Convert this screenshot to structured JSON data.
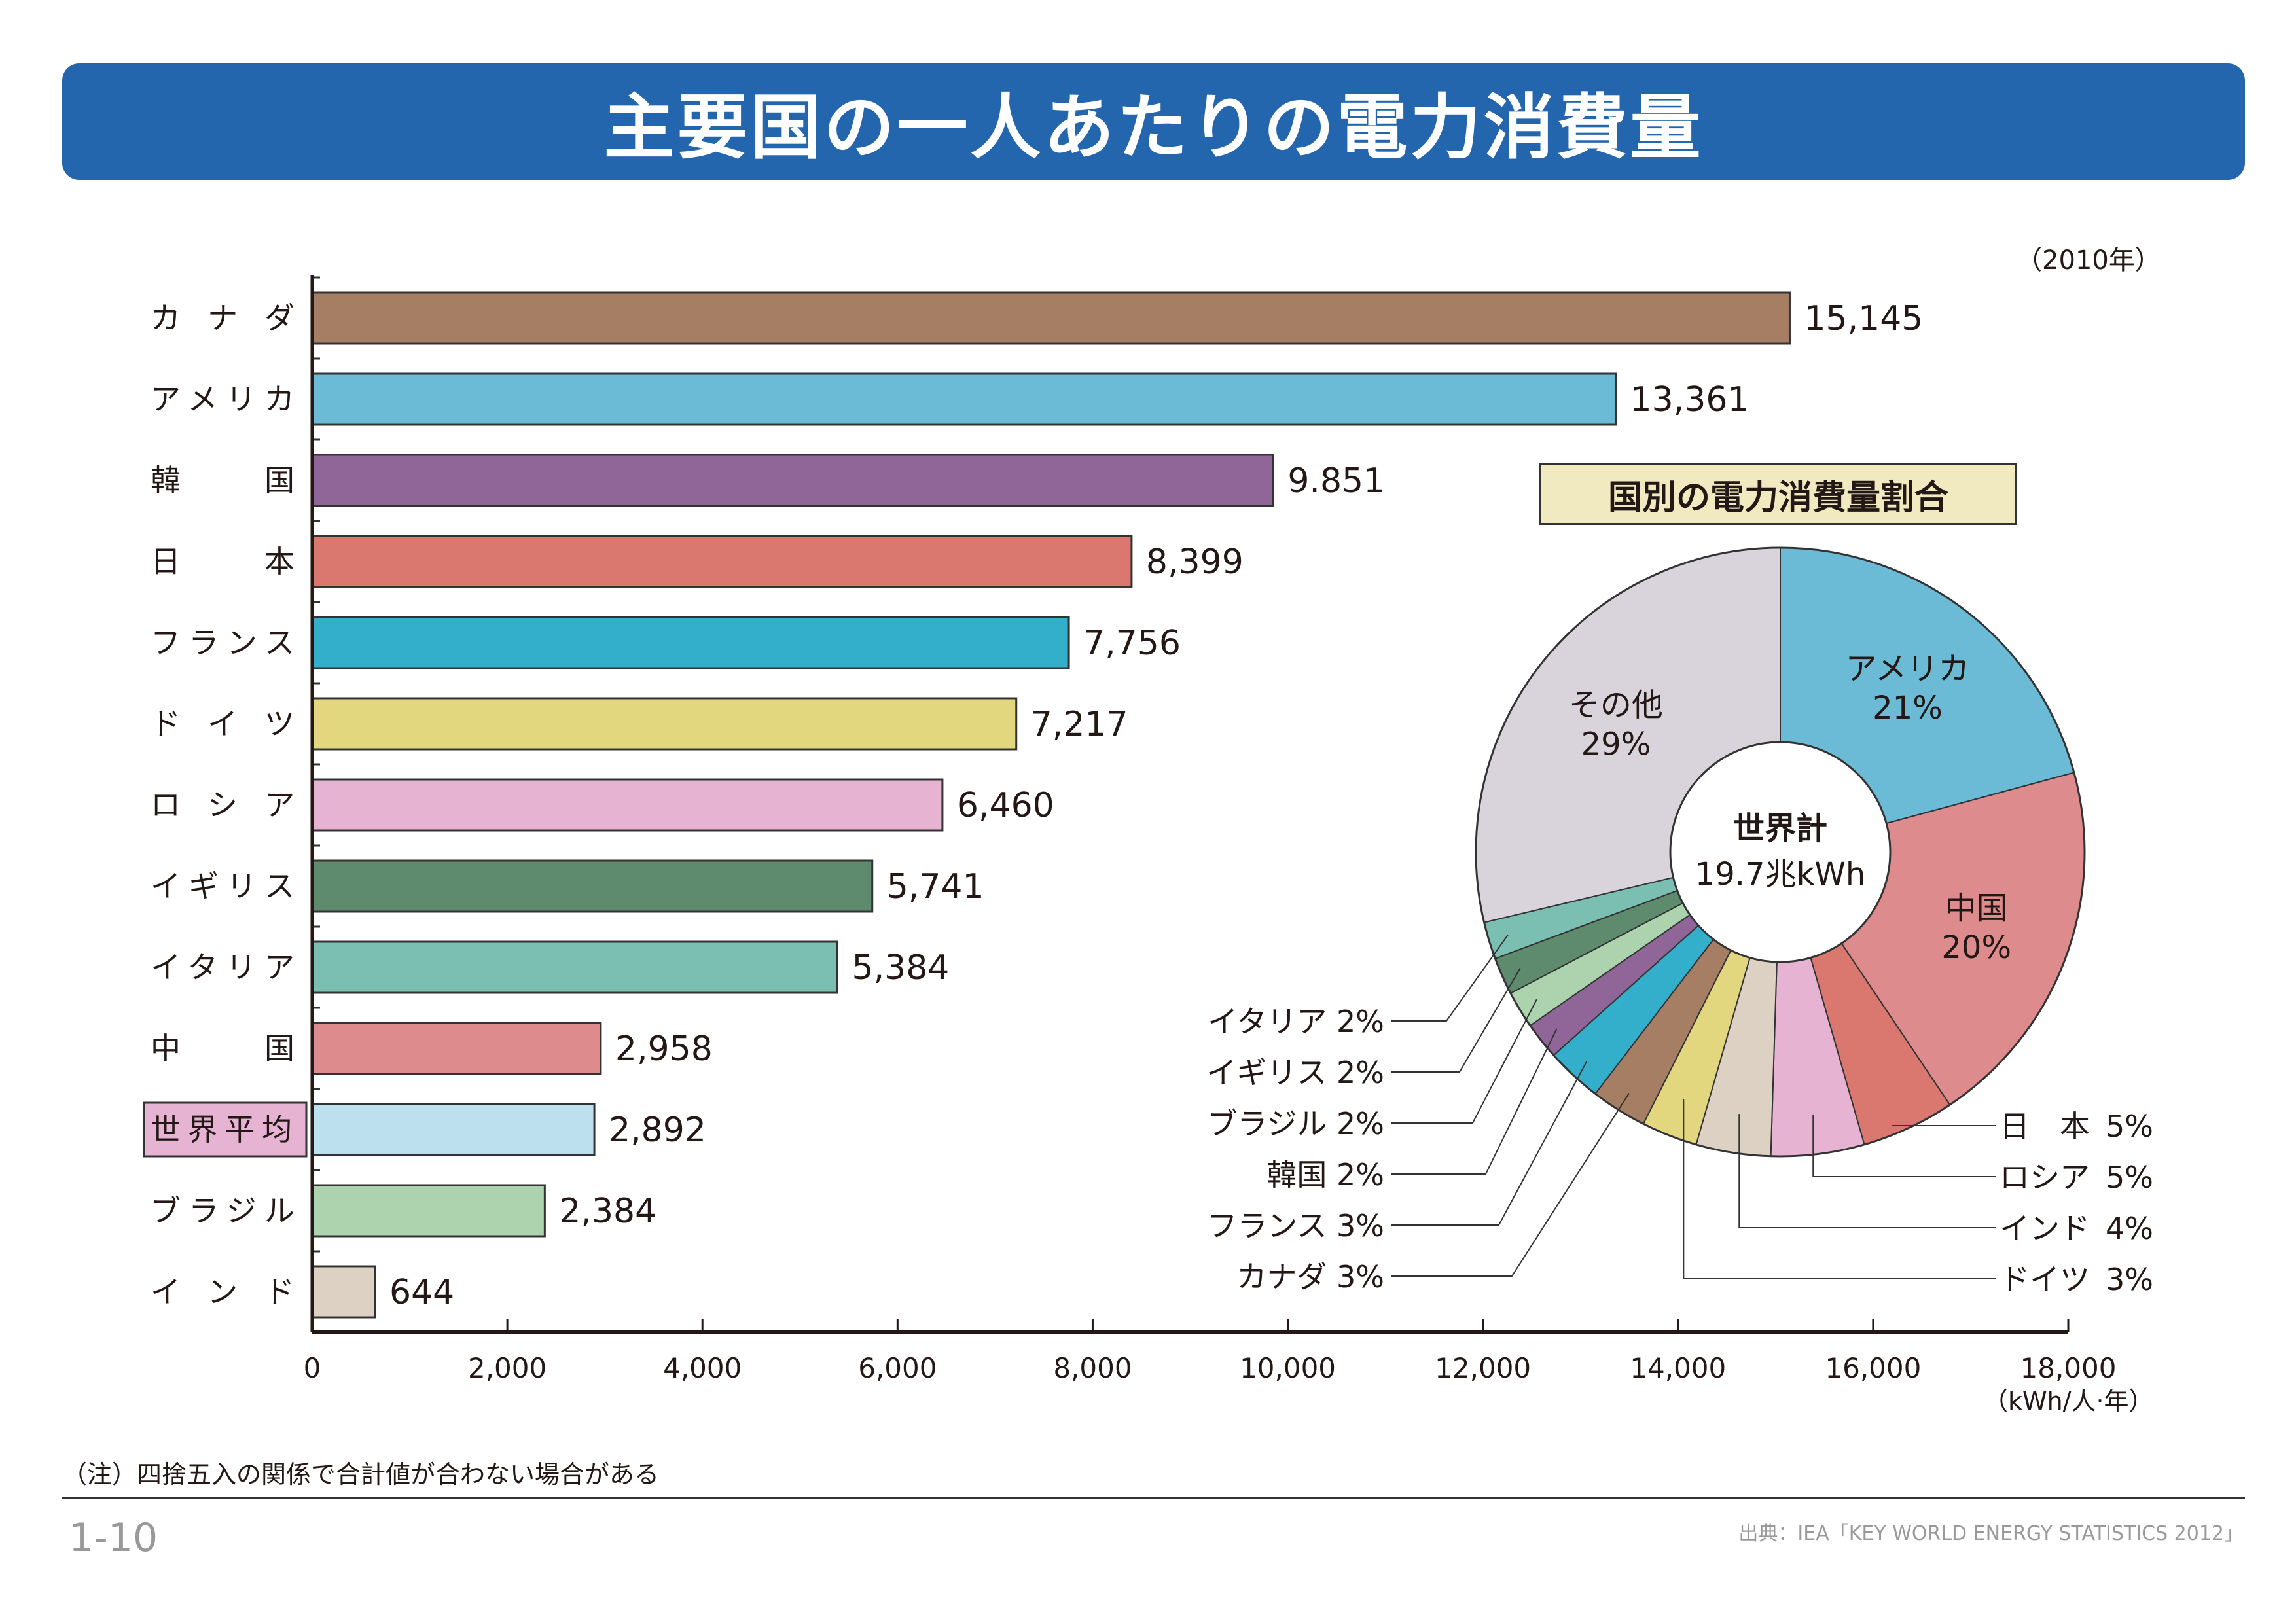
{
  "title": "主要国の一人あたりの電力消費量",
  "year_note": "（2010年）",
  "footnote": "（注）四捨五入の関係で合計値が合わない場合がある",
  "page_number": "1-10",
  "source": "出典：IEA「KEY WORLD ENERGY STATISTICS 2012」",
  "chart_data": [
    {
      "type": "bar",
      "orientation": "horizontal",
      "title": "主要国の一人あたりの電力消費量",
      "xlabel": "（kWh/人·年）",
      "xlim": [
        0,
        18000
      ],
      "xticks": [
        "0",
        "2,000",
        "4,000",
        "6,000",
        "8,000",
        "10,000",
        "12,000",
        "14,000",
        "16,000",
        "18,000"
      ],
      "grid": false,
      "categories": [
        "カナダ",
        "アメリカ",
        "韓国",
        "日本",
        "フランス",
        "ドイツ",
        "ロシア",
        "イギリス",
        "イタリア",
        "中国",
        "世界平均",
        "ブラジル",
        "インド"
      ],
      "category_labels": [
        "カ ナ ダ",
        "アメリカ",
        "韓　　国",
        "日　　本",
        "フランス",
        "ド イ ツ",
        "ロ シ ア",
        "イギリス",
        "イタリア",
        "中　　国",
        "世界平均",
        "ブラジル",
        "イ ン ド"
      ],
      "values": [
        15145,
        13361,
        9851,
        8399,
        7756,
        7217,
        6460,
        5741,
        5384,
        2958,
        2892,
        2384,
        644
      ],
      "value_labels": [
        "15,145",
        "13,361",
        "9.851",
        "8,399",
        "7,756",
        "7,217",
        "6,460",
        "5,741",
        "5,384",
        "2,958",
        "2,892",
        "2,384",
        "644"
      ],
      "colors": [
        "#a67e64",
        "#6bbbd6",
        "#906699",
        "#da7870",
        "#33afcc",
        "#e2d77e",
        "#e6b4d2",
        "#5e8b6e",
        "#7abfb2",
        "#de8b8e",
        "#bde0ee",
        "#acd2ae",
        "#ddd1c3"
      ],
      "highlight_label": "世界平均",
      "highlight_color": "#e6b4d2"
    },
    {
      "type": "pie",
      "style": "donut",
      "title": "国別の電力消費量割合",
      "center_label": "世界計",
      "center_value": "19.7兆kWh",
      "slices": [
        {
          "name": "アメリカ",
          "label": "アメリカ",
          "pct": 21,
          "pct_label": "21%",
          "color": "#6bbbd6",
          "label_inside": true
        },
        {
          "name": "中国",
          "label": "中国",
          "pct": 20,
          "pct_label": "20%",
          "color": "#de8b8e",
          "label_inside": true
        },
        {
          "name": "日本",
          "label": "日　本",
          "pct": 5,
          "pct_label": "5%",
          "color": "#da7870"
        },
        {
          "name": "ロシア",
          "label": "ロシア",
          "pct": 5,
          "pct_label": "5%",
          "color": "#e6b4d2"
        },
        {
          "name": "インド",
          "label": "インド",
          "pct": 4,
          "pct_label": "4%",
          "color": "#ddd1c3"
        },
        {
          "name": "ドイツ",
          "label": "ドイツ",
          "pct": 3,
          "pct_label": "3%",
          "color": "#e2d77e"
        },
        {
          "name": "カナダ",
          "label": "カナダ",
          "pct": 3,
          "pct_label": "3%",
          "color": "#a67e64"
        },
        {
          "name": "フランス",
          "label": "フランス",
          "pct": 3,
          "pct_label": "3%",
          "color": "#33afcc"
        },
        {
          "name": "韓国",
          "label": "韓国",
          "pct": 2,
          "pct_label": "2%",
          "color": "#906699"
        },
        {
          "name": "ブラジル",
          "label": "ブラジル",
          "pct": 2,
          "pct_label": "2%",
          "color": "#acd2ae"
        },
        {
          "name": "イギリス",
          "label": "イギリス",
          "pct": 2,
          "pct_label": "2%",
          "color": "#5e8b6e"
        },
        {
          "name": "イタリア",
          "label": "イタリア",
          "pct": 2,
          "pct_label": "2%",
          "color": "#7abfb2"
        },
        {
          "name": "その他",
          "label": "その他",
          "pct": 29,
          "pct_label": "29%",
          "color": "#d9d4dc",
          "label_inside": true
        }
      ]
    }
  ]
}
